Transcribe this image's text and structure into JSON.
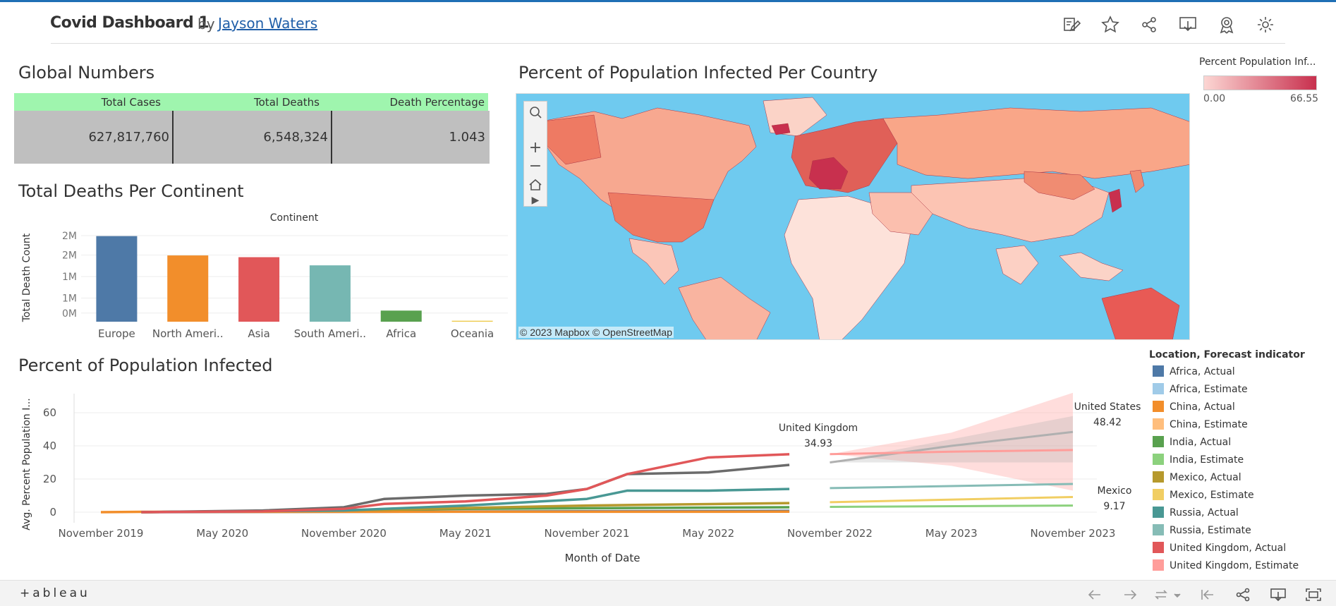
{
  "header": {
    "title": "Covid Dashboard 1",
    "by": "by",
    "author": "Jayson Waters",
    "toolbar": [
      "edit-icon",
      "star-icon",
      "share-icon",
      "download-icon",
      "award-icon",
      "gear-icon"
    ]
  },
  "global_numbers": {
    "title": "Global Numbers",
    "columns": [
      "Total Cases",
      "Total Deaths",
      "Death Percentage"
    ],
    "values": [
      "627,817,760",
      "6,548,324",
      "1.043"
    ],
    "colors": {
      "header": "#9ff5ae",
      "body": "#bfbfbf"
    }
  },
  "map": {
    "title": "Percent of Population Infected Per Country",
    "credit": "© 2023 Mapbox  © OpenStreetMap",
    "legend": {
      "title": "Percent Population Inf...",
      "min": "0.00",
      "max": "66.55"
    },
    "colors": {
      "ocean": "#6fcaef",
      "low": "#fcd6d3",
      "high": "#c8304e"
    }
  },
  "continent_chart": {
    "title": "Total Deaths Per Continent"
  },
  "infected_chart": {
    "title": "Percent of Population Infected"
  },
  "line_legend": {
    "title": "Location, Forecast indicator",
    "items": [
      {
        "label": "Africa, Actual",
        "color": "#4e79a7"
      },
      {
        "label": "Africa, Estimate",
        "color": "#a0cbe8"
      },
      {
        "label": "China, Actual",
        "color": "#f28e2b"
      },
      {
        "label": "China, Estimate",
        "color": "#ffbe7d"
      },
      {
        "label": "India, Actual",
        "color": "#59a14f"
      },
      {
        "label": "India, Estimate",
        "color": "#8cd17d"
      },
      {
        "label": "Mexico, Actual",
        "color": "#b6992d"
      },
      {
        "label": "Mexico, Estimate",
        "color": "#f1ce63"
      },
      {
        "label": "Russia, Actual",
        "color": "#499894"
      },
      {
        "label": "Russia, Estimate",
        "color": "#86bcb6"
      },
      {
        "label": "United Kingdom, Actual",
        "color": "#e15759"
      },
      {
        "label": "United Kingdom, Estimate",
        "color": "#ff9d9a"
      }
    ]
  },
  "footer": {
    "logo": "+ableau",
    "icons": [
      "undo-icon",
      "redo-icon",
      "revert-icon",
      "revert-start-icon",
      "share-icon",
      "download-icon",
      "fullscreen-icon"
    ]
  },
  "chart_data": [
    {
      "type": "bar",
      "title": "Total Deaths Per Continent",
      "header": "Continent",
      "xlabel": "",
      "ylabel": "Total Death Count",
      "categories": [
        "Europe",
        "North Ameri..",
        "Asia",
        "South Ameri..",
        "Africa",
        "Oceania"
      ],
      "values": [
        1990000,
        1540000,
        1500000,
        1310000,
        258000,
        22000
      ],
      "colors": [
        "#4e79a7",
        "#f28e2b",
        "#e15759",
        "#76b7b2",
        "#59a14f",
        "#edc948"
      ],
      "yticks": [
        "0M",
        "1M",
        "1M",
        "2M",
        "2M"
      ],
      "ytick_values": [
        200000,
        550000,
        1050000,
        1550000,
        2000000
      ],
      "ylim": [
        0,
        2050000
      ]
    },
    {
      "type": "line",
      "title": "Percent of Population Infected",
      "xlabel": "Month of Date",
      "ylabel": "Avg. Percent Population I...",
      "xticks": [
        "November 2019",
        "May 2020",
        "November 2020",
        "May 2021",
        "November 2021",
        "May 2022",
        "November 2022",
        "May 2023",
        "November 2023"
      ],
      "yticks": [
        0,
        20,
        40,
        60
      ],
      "ylim": [
        -5,
        75
      ],
      "xlim": [
        "2019-09",
        "2024-02"
      ],
      "series": [
        {
          "name": "United Kingdom",
          "kind": "actual",
          "color": "#e15759",
          "x": [
            "2020-01",
            "2020-07",
            "2020-11",
            "2021-01",
            "2021-05",
            "2021-09",
            "2021-11",
            "2022-01",
            "2022-03",
            "2022-05",
            "2022-07",
            "2022-09"
          ],
          "y": [
            0,
            0.5,
            2,
            5,
            6.5,
            10,
            14,
            23,
            28,
            33,
            34,
            34.93
          ]
        },
        {
          "name": "United Kingdom",
          "kind": "estimate",
          "color": "#ff9d9a",
          "x": [
            "2022-11",
            "2023-05",
            "2023-11"
          ],
          "y": [
            35,
            36.5,
            37.5
          ],
          "band": [
            [
              35,
              35
            ],
            [
              28,
              48
            ],
            [
              13,
              72
            ]
          ]
        },
        {
          "name": "United States",
          "kind": "actual",
          "color": "#6b6b6b",
          "x": [
            "2020-01",
            "2020-07",
            "2020-11",
            "2021-01",
            "2021-05",
            "2021-09",
            "2021-11",
            "2022-01",
            "2022-05",
            "2022-09"
          ],
          "y": [
            0,
            1,
            3,
            8,
            10,
            11,
            14,
            23,
            24,
            28.5
          ]
        },
        {
          "name": "United States",
          "kind": "estimate",
          "color": "#b0b0b0",
          "x": [
            "2022-11",
            "2023-05",
            "2023-11"
          ],
          "y": [
            30,
            40,
            48.42
          ]
        },
        {
          "name": "Russia",
          "kind": "actual",
          "color": "#499894",
          "x": [
            "2020-01",
            "2020-11",
            "2021-05",
            "2021-11",
            "2022-01",
            "2022-05",
            "2022-09"
          ],
          "y": [
            0,
            1,
            4,
            8,
            13,
            13,
            14
          ]
        },
        {
          "name": "Russia",
          "kind": "estimate",
          "color": "#86bcb6",
          "x": [
            "2022-11",
            "2023-11"
          ],
          "y": [
            14.5,
            17
          ]
        },
        {
          "name": "Mexico",
          "kind": "actual",
          "color": "#b6992d",
          "x": [
            "2020-01",
            "2021-01",
            "2021-11",
            "2022-09"
          ],
          "y": [
            0,
            1.5,
            4,
            5.5
          ]
        },
        {
          "name": "Mexico",
          "kind": "estimate",
          "color": "#f1ce63",
          "x": [
            "2022-11",
            "2023-11"
          ],
          "y": [
            6,
            9.17
          ]
        },
        {
          "name": "India",
          "kind": "actual",
          "color": "#59a14f",
          "x": [
            "2020-01",
            "2021-05",
            "2022-09"
          ],
          "y": [
            0,
            2,
            3
          ]
        },
        {
          "name": "India",
          "kind": "estimate",
          "color": "#8cd17d",
          "x": [
            "2022-11",
            "2023-11"
          ],
          "y": [
            3.2,
            4
          ]
        },
        {
          "name": "China",
          "kind": "actual",
          "color": "#f28e2b",
          "x": [
            "2019-11",
            "2020-01",
            "2022-09"
          ],
          "y": [
            0,
            0.2,
            0.3
          ]
        },
        {
          "name": "Africa",
          "kind": "actual",
          "color": "#4e79a7",
          "x": [
            "2020-01",
            "2022-09"
          ],
          "y": [
            0,
            0.8
          ]
        }
      ],
      "annotations": [
        {
          "label": "United Kingdom",
          "value": "34.93"
        },
        {
          "label": "United States",
          "value": "48.42"
        },
        {
          "label": "Mexico",
          "value": "9.17"
        }
      ]
    }
  ]
}
